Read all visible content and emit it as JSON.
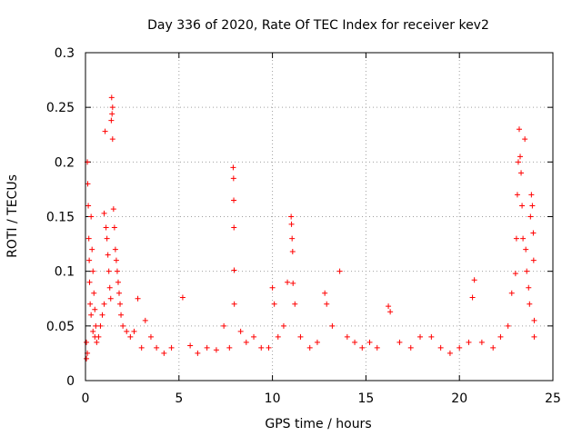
{
  "chart_data": {
    "type": "scatter",
    "title": "Day 336 of 2020, Rate Of TEC Index for receiver kev2",
    "xlabel": "GPS time / hours",
    "ylabel": "ROTI / TECUs",
    "xlim": [
      0,
      25
    ],
    "ylim": [
      0,
      0.3
    ],
    "xticks": [
      0,
      5,
      10,
      15,
      20,
      25
    ],
    "xtick_labels": [
      "0",
      "5",
      "10",
      "15",
      "20",
      "25"
    ],
    "yticks": [
      0,
      0.05,
      0.1,
      0.15,
      0.2,
      0.25,
      0.3
    ],
    "ytick_labels": [
      "0",
      "0.05",
      "0.1",
      "0.15",
      "0.2",
      "0.25",
      "0.3"
    ],
    "grid": true,
    "marker": "+",
    "series": [
      {
        "name": "ROTI",
        "color": "#ff0000",
        "points": [
          [
            0.05,
            0.035
          ],
          [
            0.1,
            0.2
          ],
          [
            0.12,
            0.18
          ],
          [
            0.15,
            0.16
          ],
          [
            0.18,
            0.13
          ],
          [
            0.2,
            0.11
          ],
          [
            0.22,
            0.09
          ],
          [
            0.25,
            0.07
          ],
          [
            0.05,
            0.02
          ],
          [
            0.1,
            0.025
          ],
          [
            0.3,
            0.15
          ],
          [
            0.35,
            0.12
          ],
          [
            0.4,
            0.1
          ],
          [
            0.45,
            0.08
          ],
          [
            0.5,
            0.065
          ],
          [
            0.55,
            0.05
          ],
          [
            0.3,
            0.06
          ],
          [
            0.4,
            0.045
          ],
          [
            0.5,
            0.04
          ],
          [
            0.6,
            0.035
          ],
          [
            0.7,
            0.04
          ],
          [
            0.8,
            0.05
          ],
          [
            0.9,
            0.06
          ],
          [
            1.0,
            0.07
          ],
          [
            1.0,
            0.153
          ],
          [
            1.05,
            0.228
          ],
          [
            1.1,
            0.14
          ],
          [
            1.15,
            0.13
          ],
          [
            1.2,
            0.115
          ],
          [
            1.25,
            0.1
          ],
          [
            1.3,
            0.085
          ],
          [
            1.35,
            0.075
          ],
          [
            1.4,
            0.259
          ],
          [
            1.45,
            0.25
          ],
          [
            1.42,
            0.244
          ],
          [
            1.38,
            0.238
          ],
          [
            1.45,
            0.221
          ],
          [
            1.5,
            0.157
          ],
          [
            1.55,
            0.14
          ],
          [
            1.6,
            0.12
          ],
          [
            1.65,
            0.11
          ],
          [
            1.7,
            0.1
          ],
          [
            1.75,
            0.09
          ],
          [
            1.8,
            0.08
          ],
          [
            1.85,
            0.07
          ],
          [
            1.9,
            0.06
          ],
          [
            2.0,
            0.05
          ],
          [
            2.2,
            0.045
          ],
          [
            2.4,
            0.04
          ],
          [
            2.6,
            0.045
          ],
          [
            2.8,
            0.075
          ],
          [
            3.0,
            0.03
          ],
          [
            3.2,
            0.055
          ],
          [
            3.5,
            0.04
          ],
          [
            3.8,
            0.03
          ],
          [
            4.2,
            0.025
          ],
          [
            4.6,
            0.03
          ],
          [
            5.2,
            0.076
          ],
          [
            5.6,
            0.032
          ],
          [
            6.0,
            0.025
          ],
          [
            6.5,
            0.03
          ],
          [
            7.0,
            0.028
          ],
          [
            7.4,
            0.05
          ],
          [
            7.7,
            0.03
          ],
          [
            7.9,
            0.195
          ],
          [
            7.92,
            0.185
          ],
          [
            7.93,
            0.165
          ],
          [
            7.94,
            0.14
          ],
          [
            7.95,
            0.101
          ],
          [
            7.96,
            0.07
          ],
          [
            8.3,
            0.045
          ],
          [
            8.6,
            0.035
          ],
          [
            9.0,
            0.04
          ],
          [
            9.4,
            0.03
          ],
          [
            9.8,
            0.03
          ],
          [
            10.0,
            0.085
          ],
          [
            10.1,
            0.07
          ],
          [
            10.3,
            0.04
          ],
          [
            10.6,
            0.05
          ],
          [
            10.8,
            0.09
          ],
          [
            11.0,
            0.15
          ],
          [
            11.02,
            0.143
          ],
          [
            11.05,
            0.13
          ],
          [
            11.08,
            0.118
          ],
          [
            11.1,
            0.089
          ],
          [
            11.2,
            0.07
          ],
          [
            11.5,
            0.04
          ],
          [
            12.0,
            0.03
          ],
          [
            12.4,
            0.035
          ],
          [
            12.8,
            0.08
          ],
          [
            12.9,
            0.07
          ],
          [
            13.2,
            0.05
          ],
          [
            13.6,
            0.1
          ],
          [
            14.0,
            0.04
          ],
          [
            14.4,
            0.035
          ],
          [
            14.8,
            0.03
          ],
          [
            15.2,
            0.035
          ],
          [
            15.6,
            0.03
          ],
          [
            16.2,
            0.068
          ],
          [
            16.3,
            0.063
          ],
          [
            16.8,
            0.035
          ],
          [
            17.4,
            0.03
          ],
          [
            17.9,
            0.04
          ],
          [
            18.5,
            0.04
          ],
          [
            19.0,
            0.03
          ],
          [
            19.5,
            0.025
          ],
          [
            20.0,
            0.03
          ],
          [
            20.5,
            0.035
          ],
          [
            20.7,
            0.076
          ],
          [
            20.8,
            0.092
          ],
          [
            21.2,
            0.035
          ],
          [
            21.8,
            0.03
          ],
          [
            22.2,
            0.04
          ],
          [
            22.6,
            0.05
          ],
          [
            22.8,
            0.08
          ],
          [
            23.0,
            0.098
          ],
          [
            23.05,
            0.13
          ],
          [
            23.1,
            0.17
          ],
          [
            23.15,
            0.2
          ],
          [
            23.2,
            0.23
          ],
          [
            23.25,
            0.205
          ],
          [
            23.3,
            0.19
          ],
          [
            23.35,
            0.16
          ],
          [
            23.4,
            0.13
          ],
          [
            23.5,
            0.221
          ],
          [
            23.55,
            0.12
          ],
          [
            23.6,
            0.1
          ],
          [
            23.7,
            0.085
          ],
          [
            23.75,
            0.07
          ],
          [
            23.8,
            0.15
          ],
          [
            23.85,
            0.17
          ],
          [
            23.9,
            0.16
          ],
          [
            23.95,
            0.135
          ],
          [
            23.97,
            0.11
          ],
          [
            24.0,
            0.055
          ],
          [
            24.0,
            0.04
          ]
        ]
      }
    ]
  }
}
